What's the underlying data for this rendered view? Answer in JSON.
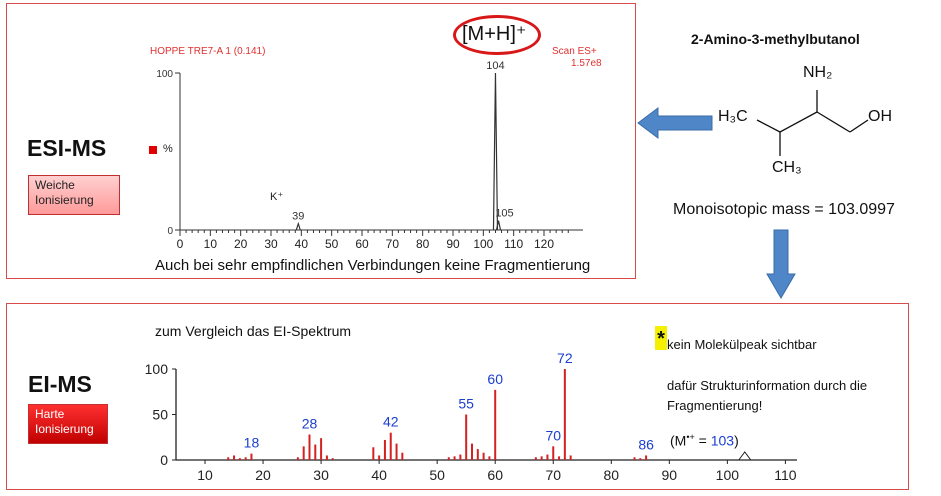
{
  "esi": {
    "method_label": "ESI-MS",
    "ionization_badge": "Weiche Ionisierung",
    "sample_title": "HOPPE TRE7-A 1 (0.141)",
    "scan_label": "Scan ES+",
    "intensity_label": "1.57e8",
    "y_axis_percent": "%",
    "ion_label": "[M+H]⁺",
    "k_label": "K⁺",
    "caption": "Auch bei sehr empfindlichen Verbindungen keine Fragmentierung"
  },
  "molecule": {
    "name": "2-Amino-3-methylbutanol",
    "nh2": "NH₂",
    "h3c": "H₃C",
    "oh": "OH",
    "ch3": "CH₃",
    "mass_text": "Monoisotopic mass = 103.0997"
  },
  "ei": {
    "method_label": "EI-MS",
    "ionization_badge": "Harte Ionisierung",
    "subtitle": "zum Vergleich das EI-Spektrum",
    "note_star": "*",
    "note1": "kein Molekülpeak sichtbar",
    "note2": "dafür Strukturinformation durch die Fragmentierung!",
    "note3": "(M•+ = 103)"
  },
  "chart_data": [
    {
      "type": "bar",
      "name": "esi",
      "xlim": [
        0,
        130
      ],
      "ylim": [
        0,
        100
      ],
      "xticks": [
        0,
        10,
        20,
        30,
        40,
        50,
        60,
        70,
        80,
        90,
        100,
        110,
        120
      ],
      "yticks": [
        0,
        100
      ],
      "peaks": [
        {
          "x": 39,
          "y": 4,
          "label": "39"
        },
        {
          "x": 104,
          "y": 100,
          "label": "104"
        },
        {
          "x": 105,
          "y": 6,
          "label": "105"
        }
      ],
      "colors": {
        "bar": "#333333"
      }
    },
    {
      "type": "bar",
      "name": "ei",
      "xlim": [
        5,
        112
      ],
      "ylim": [
        0,
        100
      ],
      "xticks": [
        10,
        20,
        30,
        40,
        50,
        60,
        70,
        80,
        90,
        100,
        110
      ],
      "yticks": [
        0,
        50,
        100
      ],
      "peaks": [
        {
          "x": 14,
          "y": 3
        },
        {
          "x": 15,
          "y": 5
        },
        {
          "x": 16,
          "y": 2
        },
        {
          "x": 17,
          "y": 3
        },
        {
          "x": 18,
          "y": 7,
          "label": "18"
        },
        {
          "x": 26,
          "y": 3
        },
        {
          "x": 27,
          "y": 15
        },
        {
          "x": 28,
          "y": 28,
          "label": "28"
        },
        {
          "x": 29,
          "y": 17
        },
        {
          "x": 30,
          "y": 24
        },
        {
          "x": 31,
          "y": 5
        },
        {
          "x": 32,
          "y": 2
        },
        {
          "x": 39,
          "y": 14
        },
        {
          "x": 40,
          "y": 5
        },
        {
          "x": 41,
          "y": 22
        },
        {
          "x": 42,
          "y": 30,
          "label": "42"
        },
        {
          "x": 43,
          "y": 18
        },
        {
          "x": 44,
          "y": 8
        },
        {
          "x": 52,
          "y": 3
        },
        {
          "x": 53,
          "y": 4
        },
        {
          "x": 54,
          "y": 6
        },
        {
          "x": 55,
          "y": 50,
          "label": "55"
        },
        {
          "x": 56,
          "y": 18
        },
        {
          "x": 57,
          "y": 12
        },
        {
          "x": 58,
          "y": 8
        },
        {
          "x": 59,
          "y": 4
        },
        {
          "x": 60,
          "y": 77,
          "label": "60"
        },
        {
          "x": 67,
          "y": 3
        },
        {
          "x": 68,
          "y": 4
        },
        {
          "x": 69,
          "y": 6
        },
        {
          "x": 70,
          "y": 15,
          "label": "70"
        },
        {
          "x": 71,
          "y": 4
        },
        {
          "x": 72,
          "y": 100,
          "label": "72"
        },
        {
          "x": 73,
          "y": 5
        },
        {
          "x": 84,
          "y": 3
        },
        {
          "x": 85,
          "y": 2
        },
        {
          "x": 86,
          "y": 5,
          "label": "86"
        }
      ],
      "colors": {
        "bar": "#d42020",
        "label": "#1a3ed0"
      }
    }
  ]
}
